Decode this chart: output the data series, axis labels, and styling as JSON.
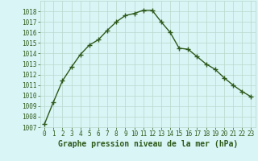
{
  "x": [
    0,
    1,
    2,
    3,
    4,
    5,
    6,
    7,
    8,
    9,
    10,
    11,
    12,
    13,
    14,
    15,
    16,
    17,
    18,
    19,
    20,
    21,
    22,
    23
  ],
  "y": [
    1007.3,
    1009.4,
    1011.4,
    1012.7,
    1013.9,
    1014.8,
    1015.3,
    1016.2,
    1017.0,
    1017.6,
    1017.8,
    1018.1,
    1018.1,
    1017.0,
    1016.0,
    1014.5,
    1014.4,
    1013.7,
    1013.0,
    1012.5,
    1011.7,
    1011.0,
    1010.4,
    1009.9
  ],
  "line_color": "#2d5a1b",
  "marker": "+",
  "markersize": 4,
  "markeredgewidth": 1.0,
  "linewidth": 1.0,
  "bg_color": "#d9f5f5",
  "grid_color": "#b8d8cc",
  "xlabel": "Graphe pression niveau de la mer (hPa)",
  "xlabel_fontsize": 7,
  "xlim": [
    -0.5,
    23.5
  ],
  "ylim": [
    1007,
    1019
  ],
  "yticks": [
    1007,
    1008,
    1009,
    1010,
    1011,
    1012,
    1013,
    1014,
    1015,
    1016,
    1017,
    1018
  ],
  "xticks": [
    0,
    1,
    2,
    3,
    4,
    5,
    6,
    7,
    8,
    9,
    10,
    11,
    12,
    13,
    14,
    15,
    16,
    17,
    18,
    19,
    20,
    21,
    22,
    23
  ],
  "tick_fontsize": 5.5,
  "ylabel_fontsize": 5.5
}
